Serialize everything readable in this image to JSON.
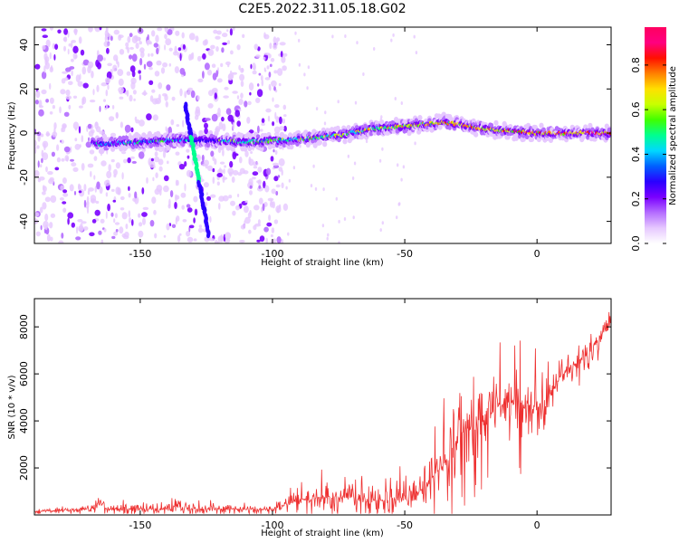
{
  "title": "C2E5.2022.311.05.18.G02",
  "chart_data": [
    {
      "type": "heatmap",
      "title": "C2E5.2022.311.05.18.G02",
      "xlabel": "Height of straight line (km)",
      "ylabel": "Frequency (Hz)",
      "xlim": [
        -190,
        28
      ],
      "ylim": [
        -50,
        48
      ],
      "x_ticks": [
        -150,
        -100,
        -50,
        0
      ],
      "y_ticks": [
        -40,
        -20,
        0,
        20,
        40
      ],
      "colorbar": {
        "label": "Normalized spectral amplitude",
        "range": [
          0.0,
          0.97
        ],
        "ticks": [
          "0.0",
          "0.2",
          "0.4",
          "0.6",
          "0.8"
        ],
        "colors": [
          "#ffffff",
          "#e6c8ff",
          "#b46cff",
          "#7a00ff",
          "#2a00ff",
          "#0060ff",
          "#00d8ff",
          "#00ff90",
          "#40ff00",
          "#c8ff00",
          "#ffe000",
          "#ff8000",
          "#ff1000",
          "#ff0080",
          "#ff0060"
        ]
      },
      "ridge": [
        {
          "x": -166,
          "y": -5
        },
        {
          "x": -150,
          "y": -4
        },
        {
          "x": -135,
          "y": -3
        },
        {
          "x": -110,
          "y": -4
        },
        {
          "x": -90,
          "y": -3
        },
        {
          "x": -75,
          "y": -1
        },
        {
          "x": -62,
          "y": 2
        },
        {
          "x": -50,
          "y": 3
        },
        {
          "x": -35,
          "y": 5
        },
        {
          "x": -20,
          "y": 2
        },
        {
          "x": 0,
          "y": 0
        },
        {
          "x": 28,
          "y": 0
        }
      ],
      "diagonal_streak": {
        "x1": -133,
        "y1": 13,
        "x2": -124,
        "y2": -47
      }
    },
    {
      "type": "line",
      "xlabel": "Height of straight line (km)",
      "ylabel": "SNR (10 * v/v)",
      "xlim": [
        -190,
        28
      ],
      "ylim": [
        0,
        9200
      ],
      "x_ticks": [
        -150,
        -100,
        -50,
        0
      ],
      "y_ticks": [
        2000,
        4000,
        6000,
        8000
      ],
      "color": "#ee3030",
      "envelope": [
        {
          "x": -190,
          "base": 150,
          "amp": 150
        },
        {
          "x": -165,
          "base": 250,
          "amp": 400
        },
        {
          "x": -140,
          "base": 250,
          "amp": 500
        },
        {
          "x": -100,
          "base": 250,
          "amp": 250
        },
        {
          "x": -90,
          "base": 600,
          "amp": 1000
        },
        {
          "x": -80,
          "base": 800,
          "amp": 1200
        },
        {
          "x": -60,
          "base": 600,
          "amp": 1300
        },
        {
          "x": -45,
          "base": 900,
          "amp": 1400
        },
        {
          "x": -35,
          "base": 2200,
          "amp": 3000
        },
        {
          "x": -28,
          "base": 3500,
          "amp": 4000
        },
        {
          "x": -15,
          "base": 4600,
          "amp": 3000
        },
        {
          "x": -5,
          "base": 4800,
          "amp": 3200
        },
        {
          "x": 0,
          "base": 4500,
          "amp": 2500
        },
        {
          "x": 10,
          "base": 6000,
          "amp": 1600
        },
        {
          "x": 20,
          "base": 7000,
          "amp": 1400
        },
        {
          "x": 28,
          "base": 8200,
          "amp": 600
        }
      ]
    }
  ]
}
